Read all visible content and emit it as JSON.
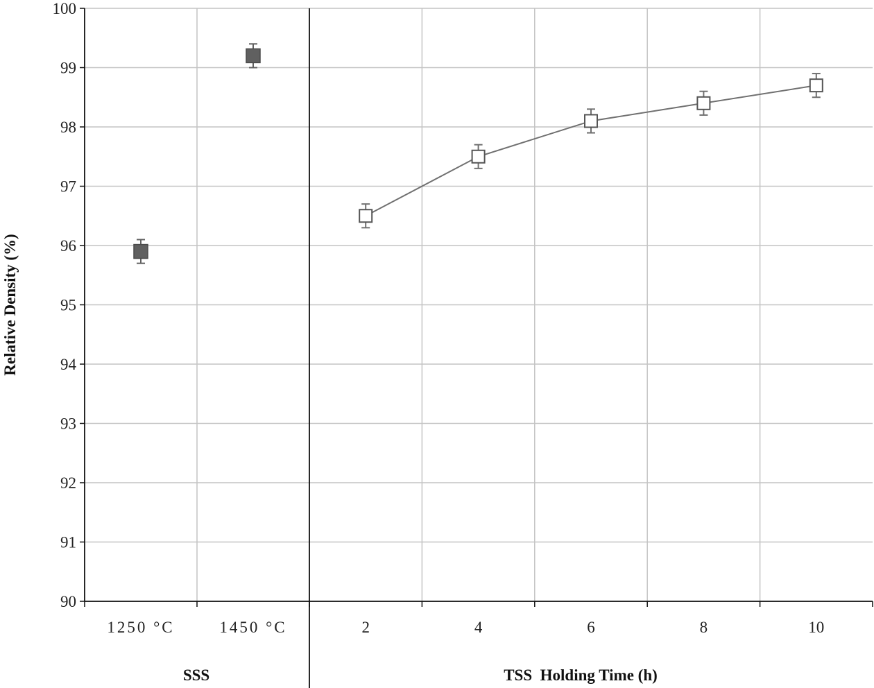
{
  "chart_data": {
    "type": "scatter",
    "ylabel": "Relative Density (%)",
    "ylim": [
      90,
      100
    ],
    "y_ticks": [
      "90",
      "91",
      "92",
      "93",
      "94",
      "95",
      "96",
      "97",
      "98",
      "99",
      "100"
    ],
    "grid": true,
    "panels": [
      {
        "group_label": "SSS",
        "categories": [
          "1250 °C",
          "1450 °C"
        ],
        "series": [
          {
            "values": [
              95.9,
              99.2
            ],
            "error": [
              0.2,
              0.2
            ],
            "marker": "filled-square",
            "line": false,
            "color": "#606060"
          }
        ]
      },
      {
        "group_label": "TSS  Holding Time (h)",
        "categories": [
          "2",
          "4",
          "6",
          "8",
          "10"
        ],
        "series": [
          {
            "x": [
              2,
              4,
              6,
              8,
              10
            ],
            "values": [
              96.5,
              97.5,
              98.1,
              98.4,
              98.7
            ],
            "error": [
              0.2,
              0.2,
              0.2,
              0.2,
              0.2
            ],
            "marker": "open-square",
            "line": true,
            "color": "#707070"
          }
        ]
      }
    ]
  }
}
